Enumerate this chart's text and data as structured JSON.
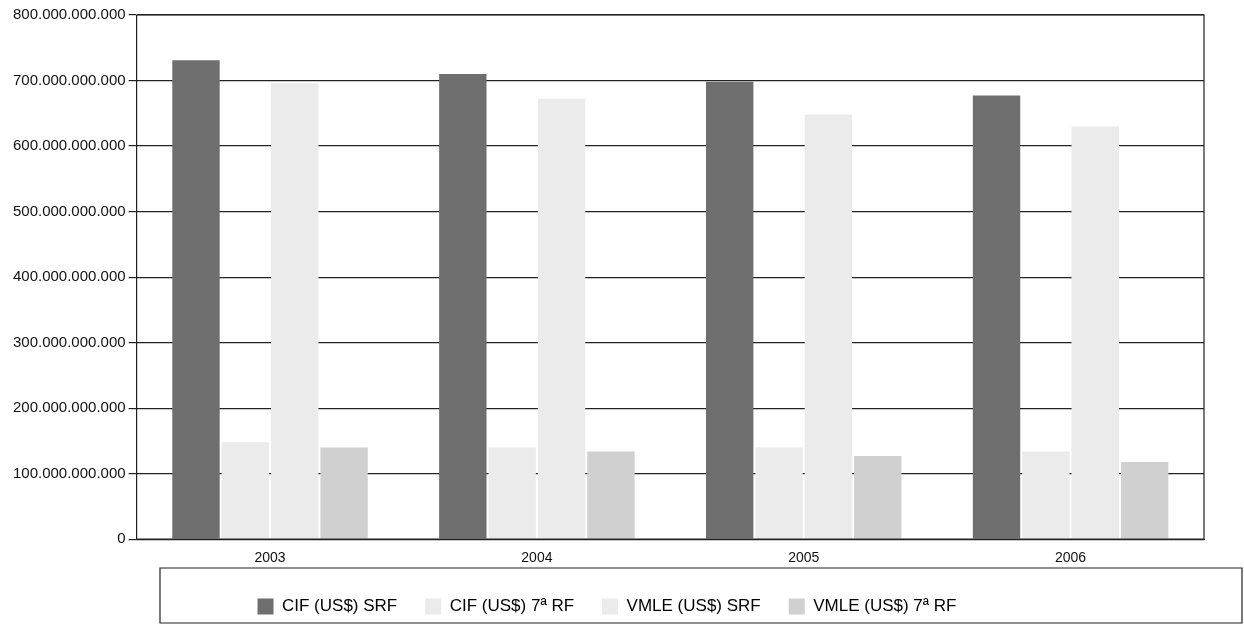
{
  "chart_data": {
    "type": "bar",
    "categories": [
      "2003",
      "2004",
      "2005",
      "2006"
    ],
    "series": [
      {
        "name": "CIF (US$) SRF",
        "color": "#6e6e6e",
        "values": [
          731000000000,
          710000000000,
          698000000000,
          677000000000
        ]
      },
      {
        "name": "CIF (US$) 7ª RF",
        "color": "#ebebeb",
        "values": [
          148000000000,
          140000000000,
          140000000000,
          134000000000
        ]
      },
      {
        "name": "VMLE (US$) SRF",
        "color": "#ebebeb",
        "values": [
          696000000000,
          672000000000,
          648000000000,
          630000000000
        ]
      },
      {
        "name": "VMLE (US$) 7ª RF",
        "color": "#d0d0d0",
        "values": [
          140000000000,
          134000000000,
          127000000000,
          118000000000
        ]
      }
    ],
    "ylim": [
      0,
      800000000000
    ],
    "yticks": [
      {
        "value": 0,
        "label": "0"
      },
      {
        "value": 100000000000,
        "label": "100.000.000.000"
      },
      {
        "value": 200000000000,
        "label": "200.000.000.000"
      },
      {
        "value": 300000000000,
        "label": "300.000.000.000"
      },
      {
        "value": 400000000000,
        "label": "400.000.000.000"
      },
      {
        "value": 500000000000,
        "label": "500.000.000.000"
      },
      {
        "value": 600000000000,
        "label": "600.000.000.000"
      },
      {
        "value": 700000000000,
        "label": "700.000.000.000"
      },
      {
        "value": 800000000000,
        "label": "800.000.000.000"
      }
    ],
    "grid": "y",
    "legend": "bottom"
  }
}
